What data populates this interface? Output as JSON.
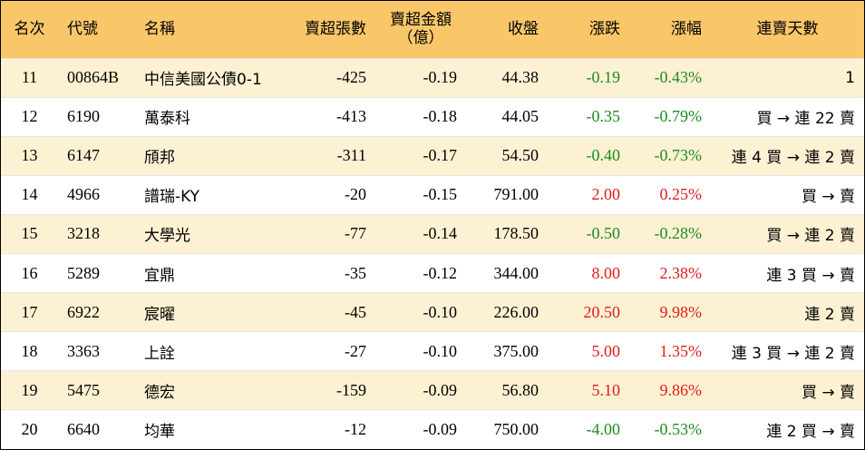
{
  "headers": {
    "rank": "名次",
    "code": "代號",
    "name": "名稱",
    "net_lots": "賣超張數",
    "net_amount_line1": "賣超金額",
    "net_amount_line2": "（億）",
    "close": "收盤",
    "change": "漲跌",
    "pct": "漲幅",
    "streak": "連賣天數"
  },
  "rows": [
    {
      "rank": "11",
      "code": "00864B",
      "name": "中信美國公債0-1",
      "net_lots": "-425",
      "net_amount": "-0.19",
      "close": "44.38",
      "change": "-0.19",
      "pct": "-0.43%",
      "dir": "down",
      "streak": "1"
    },
    {
      "rank": "12",
      "code": "6190",
      "name": "萬泰科",
      "net_lots": "-413",
      "net_amount": "-0.18",
      "close": "44.05",
      "change": "-0.35",
      "pct": "-0.79%",
      "dir": "down",
      "streak": "買 → 連 22 賣"
    },
    {
      "rank": "13",
      "code": "6147",
      "name": "頎邦",
      "net_lots": "-311",
      "net_amount": "-0.17",
      "close": "54.50",
      "change": "-0.40",
      "pct": "-0.73%",
      "dir": "down",
      "streak": "連 4 買 → 連 2 賣"
    },
    {
      "rank": "14",
      "code": "4966",
      "name": "譜瑞-KY",
      "net_lots": "-20",
      "net_amount": "-0.15",
      "close": "791.00",
      "change": "2.00",
      "pct": "0.25%",
      "dir": "up",
      "streak": "買 → 賣"
    },
    {
      "rank": "15",
      "code": "3218",
      "name": "大學光",
      "net_lots": "-77",
      "net_amount": "-0.14",
      "close": "178.50",
      "change": "-0.50",
      "pct": "-0.28%",
      "dir": "down",
      "streak": "買 → 連 2 賣"
    },
    {
      "rank": "16",
      "code": "5289",
      "name": "宜鼎",
      "net_lots": "-35",
      "net_amount": "-0.12",
      "close": "344.00",
      "change": "8.00",
      "pct": "2.38%",
      "dir": "up",
      "streak": "連 3 買 → 賣"
    },
    {
      "rank": "17",
      "code": "6922",
      "name": "宸曜",
      "net_lots": "-45",
      "net_amount": "-0.10",
      "close": "226.00",
      "change": "20.50",
      "pct": "9.98%",
      "dir": "up",
      "streak": "連 2 賣"
    },
    {
      "rank": "18",
      "code": "3363",
      "name": "上詮",
      "net_lots": "-27",
      "net_amount": "-0.10",
      "close": "375.00",
      "change": "5.00",
      "pct": "1.35%",
      "dir": "up",
      "streak": "連 3 買 → 連 2 賣"
    },
    {
      "rank": "19",
      "code": "5475",
      "name": "德宏",
      "net_lots": "-159",
      "net_amount": "-0.09",
      "close": "56.80",
      "change": "5.10",
      "pct": "9.86%",
      "dir": "up",
      "streak": "買 → 賣"
    },
    {
      "rank": "20",
      "code": "6640",
      "name": "均華",
      "net_lots": "-12",
      "net_amount": "-0.09",
      "close": "750.00",
      "change": "-4.00",
      "pct": "-0.53%",
      "dir": "down",
      "streak": "連 2 買 → 賣"
    }
  ],
  "colors": {
    "header_bg": "#F9C76A",
    "stripe_bg": "#FDF1D3",
    "up": "#E01B1B",
    "down": "#1E8C1E"
  }
}
